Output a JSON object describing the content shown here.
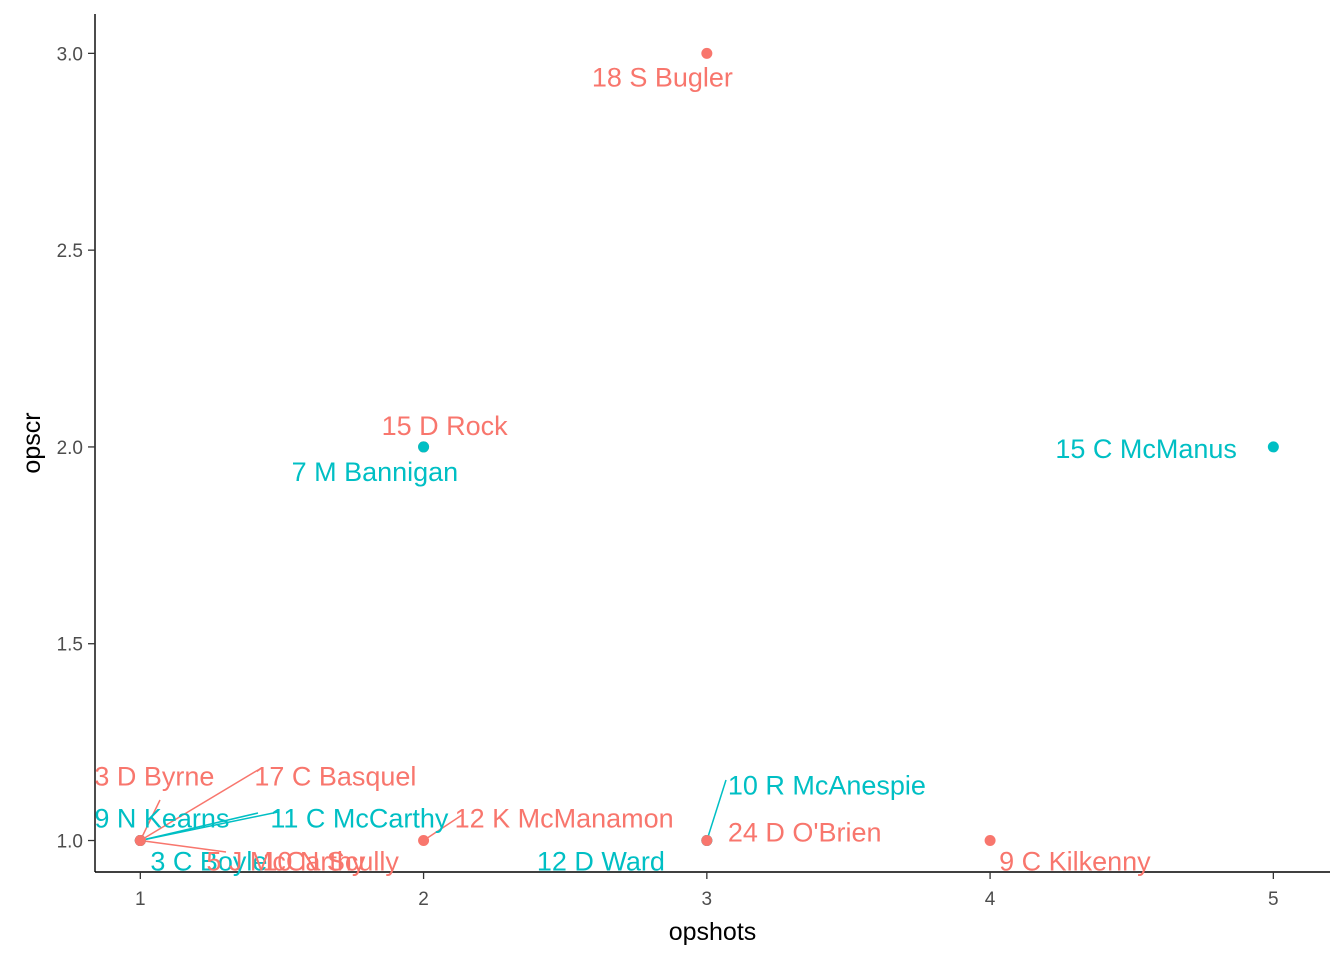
{
  "chart_data": {
    "type": "scatter",
    "xlabel": "opshots",
    "ylabel": "opscr",
    "xlim": [
      0.84,
      5.2
    ],
    "ylim": [
      0.92,
      3.1
    ],
    "xticks": [
      "1",
      "2",
      "3",
      "4",
      "5"
    ],
    "yticks": [
      "1.0",
      "1.5",
      "2.0",
      "2.5",
      "3.0"
    ],
    "grid": false,
    "colors": {
      "red": "#F8766D",
      "teal": "#00BFC4"
    },
    "points": [
      {
        "label": "18  S Bugler",
        "x": 3,
        "y": 3.0,
        "group": "red"
      },
      {
        "label": "15  D Rock",
        "x": 2,
        "y": 2.0,
        "group": "red"
      },
      {
        "label": "7  M Bannigan",
        "x": 2,
        "y": 2.0,
        "group": "teal"
      },
      {
        "label": "15  C McManus",
        "x": 5,
        "y": 2.0,
        "group": "teal"
      },
      {
        "label": "3  D Byrne",
        "x": 1,
        "y": 1.0,
        "group": "red"
      },
      {
        "label": "17  C Basquel",
        "x": 1,
        "y": 1.0,
        "group": "red"
      },
      {
        "label": "9  N Kearns",
        "x": 1,
        "y": 1.0,
        "group": "teal"
      },
      {
        "label": "11  C McCarthy",
        "x": 1,
        "y": 1.0,
        "group": "teal"
      },
      {
        "label": "3  C Boyle",
        "x": 1,
        "y": 1.0,
        "group": "teal"
      },
      {
        "label": "5  J McCarthy",
        "x": 1,
        "y": 1.0,
        "group": "red"
      },
      {
        "label": "10  N Scully",
        "x": 1,
        "y": 1.0,
        "group": "red"
      },
      {
        "label": "12  K McManamon",
        "x": 2,
        "y": 1.0,
        "group": "red"
      },
      {
        "label": "12  D Ward",
        "x": 3,
        "y": 1.0,
        "group": "teal"
      },
      {
        "label": "10  R McAnespie",
        "x": 3,
        "y": 1.0,
        "group": "teal"
      },
      {
        "label": "24  D O'Brien",
        "x": 3,
        "y": 1.0,
        "group": "red"
      },
      {
        "label": "9  C Kilkenny",
        "x": 4,
        "y": 1.0,
        "group": "red"
      }
    ]
  }
}
